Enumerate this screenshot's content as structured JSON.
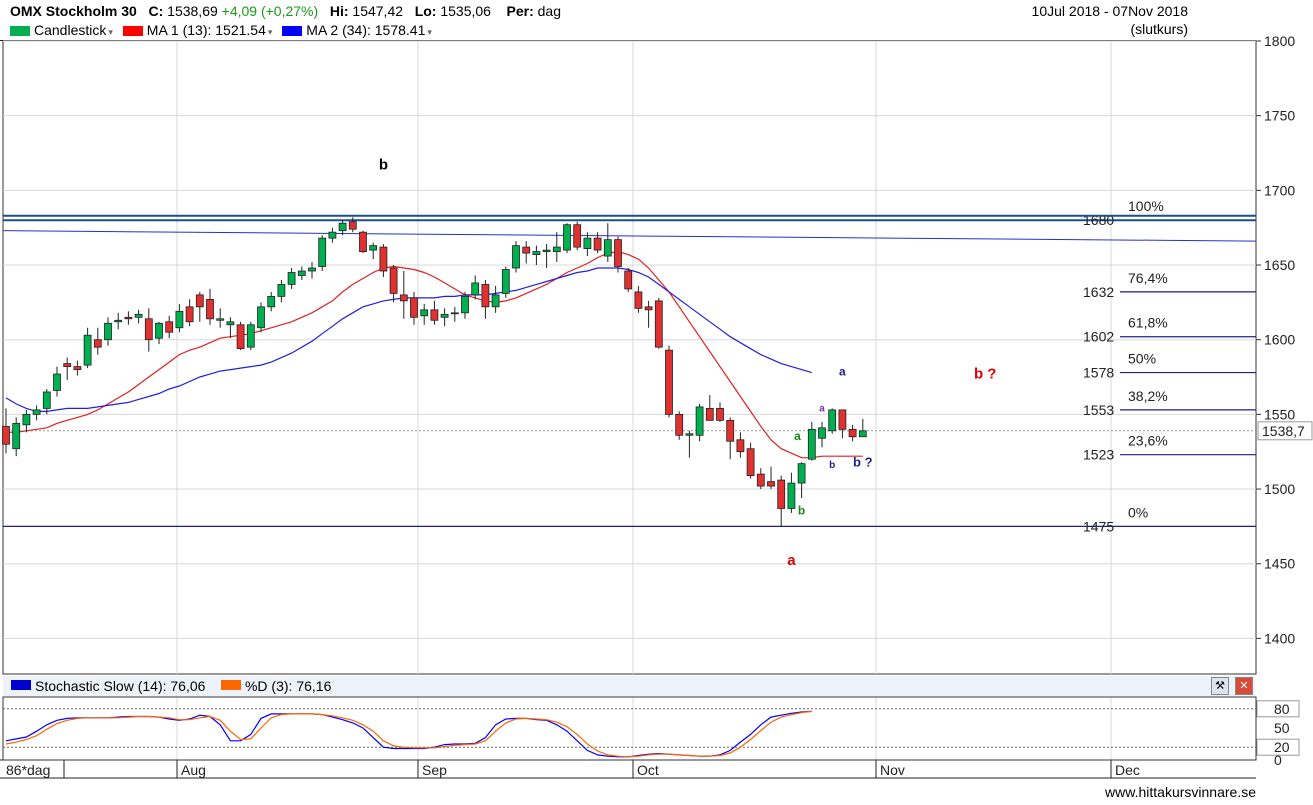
{
  "header": {
    "symbol": "OMX Stockholm 30",
    "close_label": "C:",
    "close_value": "1538,69",
    "change": "+4,09 (+0,27%)",
    "hi_label": "Hi:",
    "hi_value": "1547,42",
    "lo_label": "Lo:",
    "lo_value": "1535,06",
    "per_label": "Per:",
    "per_value": "dag",
    "date_range": "10Jul 2018 - 07Nov 2018",
    "price_type": "(slutkurs)",
    "legend": [
      {
        "label": "Candlestick",
        "color": "#00b050"
      },
      {
        "label": "MA 1 (13): 1521.54",
        "color": "#ff0000"
      },
      {
        "label": "MA 2 (34): 1578.41",
        "color": "#0000ff"
      }
    ]
  },
  "stochastic_header": {
    "k_label": "Stochastic Slow (14): 76,06",
    "d_label": "%D (3): 76,16",
    "k_color": "#0000ff",
    "d_color": "#ff6600"
  },
  "x_axis": {
    "start_label": "86*dag",
    "months": [
      "Aug",
      "Sep",
      "Oct",
      "Nov",
      "Dec"
    ]
  },
  "credit": "www.hittakursvinnare.se",
  "chart_data": [
    {
      "type": "candlestick",
      "ylim": [
        1350,
        1810
      ],
      "y_ticks": [
        1400,
        1450,
        1500,
        1550,
        1600,
        1650,
        1700,
        1750,
        1800
      ],
      "last_price_label": "1538,7",
      "candles": [
        {
          "o": 1542,
          "h": 1554,
          "l": 1524,
          "c": 1530
        },
        {
          "o": 1527,
          "h": 1548,
          "l": 1522,
          "c": 1544
        },
        {
          "o": 1543,
          "h": 1553,
          "l": 1538,
          "c": 1550
        },
        {
          "o": 1550,
          "h": 1556,
          "l": 1546,
          "c": 1553
        },
        {
          "o": 1554,
          "h": 1567,
          "l": 1550,
          "c": 1565
        },
        {
          "o": 1566,
          "h": 1582,
          "l": 1562,
          "c": 1577
        },
        {
          "o": 1584,
          "h": 1588,
          "l": 1573,
          "c": 1582
        },
        {
          "o": 1582,
          "h": 1586,
          "l": 1576,
          "c": 1580
        },
        {
          "o": 1583,
          "h": 1608,
          "l": 1581,
          "c": 1603
        },
        {
          "o": 1600,
          "h": 1608,
          "l": 1590,
          "c": 1595
        },
        {
          "o": 1600,
          "h": 1615,
          "l": 1596,
          "c": 1611
        },
        {
          "o": 1612,
          "h": 1618,
          "l": 1607,
          "c": 1613
        },
        {
          "o": 1615,
          "h": 1619,
          "l": 1610,
          "c": 1614
        },
        {
          "o": 1615,
          "h": 1620,
          "l": 1611,
          "c": 1617
        },
        {
          "o": 1614,
          "h": 1621,
          "l": 1592,
          "c": 1600
        },
        {
          "o": 1601,
          "h": 1612,
          "l": 1597,
          "c": 1611
        },
        {
          "o": 1612,
          "h": 1616,
          "l": 1601,
          "c": 1605
        },
        {
          "o": 1608,
          "h": 1624,
          "l": 1605,
          "c": 1619
        },
        {
          "o": 1622,
          "h": 1627,
          "l": 1609,
          "c": 1612
        },
        {
          "o": 1630,
          "h": 1632,
          "l": 1612,
          "c": 1622
        },
        {
          "o": 1627,
          "h": 1634,
          "l": 1610,
          "c": 1614
        },
        {
          "o": 1613,
          "h": 1621,
          "l": 1608,
          "c": 1614
        },
        {
          "o": 1610,
          "h": 1615,
          "l": 1601,
          "c": 1612
        },
        {
          "o": 1610,
          "h": 1612,
          "l": 1593,
          "c": 1594
        },
        {
          "o": 1595,
          "h": 1612,
          "l": 1593,
          "c": 1610
        },
        {
          "o": 1608,
          "h": 1625,
          "l": 1605,
          "c": 1622
        },
        {
          "o": 1622,
          "h": 1632,
          "l": 1619,
          "c": 1629
        },
        {
          "o": 1629,
          "h": 1640,
          "l": 1625,
          "c": 1637
        },
        {
          "o": 1637,
          "h": 1648,
          "l": 1634,
          "c": 1645
        },
        {
          "o": 1643,
          "h": 1649,
          "l": 1640,
          "c": 1646
        },
        {
          "o": 1646,
          "h": 1652,
          "l": 1641,
          "c": 1648
        },
        {
          "o": 1649,
          "h": 1670,
          "l": 1646,
          "c": 1668
        },
        {
          "o": 1668,
          "h": 1675,
          "l": 1665,
          "c": 1672
        },
        {
          "o": 1673,
          "h": 1680,
          "l": 1670,
          "c": 1678
        },
        {
          "o": 1679,
          "h": 1682,
          "l": 1672,
          "c": 1674
        },
        {
          "o": 1672,
          "h": 1673,
          "l": 1658,
          "c": 1659
        },
        {
          "o": 1660,
          "h": 1665,
          "l": 1654,
          "c": 1663
        },
        {
          "o": 1662,
          "h": 1664,
          "l": 1642,
          "c": 1646
        },
        {
          "o": 1648,
          "h": 1650,
          "l": 1625,
          "c": 1631
        },
        {
          "o": 1630,
          "h": 1646,
          "l": 1614,
          "c": 1626
        },
        {
          "o": 1628,
          "h": 1632,
          "l": 1610,
          "c": 1615
        },
        {
          "o": 1616,
          "h": 1624,
          "l": 1610,
          "c": 1620
        },
        {
          "o": 1620,
          "h": 1626,
          "l": 1610,
          "c": 1613
        },
        {
          "o": 1615,
          "h": 1621,
          "l": 1609,
          "c": 1617
        },
        {
          "o": 1618,
          "h": 1622,
          "l": 1612,
          "c": 1618
        },
        {
          "o": 1618,
          "h": 1632,
          "l": 1614,
          "c": 1629
        },
        {
          "o": 1630,
          "h": 1643,
          "l": 1627,
          "c": 1638
        },
        {
          "o": 1637,
          "h": 1640,
          "l": 1614,
          "c": 1622
        },
        {
          "o": 1622,
          "h": 1636,
          "l": 1618,
          "c": 1630
        },
        {
          "o": 1631,
          "h": 1649,
          "l": 1628,
          "c": 1647
        },
        {
          "o": 1648,
          "h": 1666,
          "l": 1645,
          "c": 1663
        },
        {
          "o": 1662,
          "h": 1666,
          "l": 1651,
          "c": 1658
        },
        {
          "o": 1657,
          "h": 1663,
          "l": 1650,
          "c": 1659
        },
        {
          "o": 1659,
          "h": 1664,
          "l": 1648,
          "c": 1660
        },
        {
          "o": 1659,
          "h": 1672,
          "l": 1652,
          "c": 1662
        },
        {
          "o": 1660,
          "h": 1678,
          "l": 1658,
          "c": 1677
        },
        {
          "o": 1677,
          "h": 1679,
          "l": 1660,
          "c": 1662
        },
        {
          "o": 1661,
          "h": 1672,
          "l": 1656,
          "c": 1668
        },
        {
          "o": 1668,
          "h": 1672,
          "l": 1658,
          "c": 1660
        },
        {
          "o": 1656,
          "h": 1678,
          "l": 1652,
          "c": 1667
        },
        {
          "o": 1667,
          "h": 1669,
          "l": 1645,
          "c": 1649
        },
        {
          "o": 1646,
          "h": 1648,
          "l": 1632,
          "c": 1634
        },
        {
          "o": 1632,
          "h": 1636,
          "l": 1618,
          "c": 1621
        },
        {
          "o": 1622,
          "h": 1626,
          "l": 1608,
          "c": 1620
        },
        {
          "o": 1626,
          "h": 1628,
          "l": 1594,
          "c": 1595
        },
        {
          "o": 1593,
          "h": 1596,
          "l": 1548,
          "c": 1550
        },
        {
          "o": 1550,
          "h": 1552,
          "l": 1533,
          "c": 1536
        },
        {
          "o": 1536,
          "h": 1539,
          "l": 1521,
          "c": 1537
        },
        {
          "o": 1536,
          "h": 1557,
          "l": 1532,
          "c": 1555
        },
        {
          "o": 1554,
          "h": 1563,
          "l": 1546,
          "c": 1546
        },
        {
          "o": 1554,
          "h": 1558,
          "l": 1545,
          "c": 1546
        },
        {
          "o": 1546,
          "h": 1548,
          "l": 1520,
          "c": 1532
        },
        {
          "o": 1533,
          "h": 1538,
          "l": 1521,
          "c": 1525
        },
        {
          "o": 1527,
          "h": 1531,
          "l": 1507,
          "c": 1509
        },
        {
          "o": 1510,
          "h": 1514,
          "l": 1500,
          "c": 1502
        },
        {
          "o": 1505,
          "h": 1515,
          "l": 1500,
          "c": 1502
        },
        {
          "o": 1506,
          "h": 1509,
          "l": 1475,
          "c": 1487
        },
        {
          "o": 1487,
          "h": 1511,
          "l": 1484,
          "c": 1504
        },
        {
          "o": 1504,
          "h": 1518,
          "l": 1494,
          "c": 1517
        },
        {
          "o": 1520,
          "h": 1545,
          "l": 1519,
          "c": 1540
        },
        {
          "o": 1534,
          "h": 1545,
          "l": 1528,
          "c": 1541
        },
        {
          "o": 1539,
          "h": 1554,
          "l": 1537,
          "c": 1553
        },
        {
          "o": 1553,
          "h": 1553,
          "l": 1534,
          "c": 1540
        },
        {
          "o": 1540,
          "h": 1543,
          "l": 1532,
          "c": 1535
        },
        {
          "o": 1535,
          "h": 1547,
          "l": 1535,
          "c": 1539
        }
      ],
      "ma1_13": [
        1538,
        1538,
        1539,
        1540,
        1541,
        1544,
        1546,
        1548,
        1550,
        1553,
        1557,
        1561,
        1565,
        1570,
        1575,
        1580,
        1585,
        1590,
        1593,
        1595,
        1598,
        1601,
        1602,
        1603,
        1604,
        1606,
        1608,
        1610,
        1612,
        1615,
        1618,
        1622,
        1626,
        1632,
        1637,
        1641,
        1645,
        1648,
        1649,
        1648,
        1647,
        1645,
        1642,
        1638,
        1634,
        1630,
        1628,
        1626,
        1625,
        1626,
        1628,
        1631,
        1634,
        1637,
        1641,
        1645,
        1648,
        1651,
        1655,
        1658,
        1659,
        1657,
        1654,
        1648,
        1640,
        1632,
        1622,
        1612,
        1602,
        1592,
        1582,
        1572,
        1562,
        1552,
        1542,
        1533,
        1527,
        1524,
        1521,
        1521,
        1522,
        1522,
        1522,
        1522,
        1522
      ],
      "ma2_34": [
        1561,
        1557,
        1554,
        1552,
        1552,
        1553,
        1554,
        1554,
        1554,
        1555,
        1556,
        1557,
        1558,
        1560,
        1562,
        1564,
        1567,
        1569,
        1572,
        1575,
        1577,
        1579,
        1580,
        1581,
        1582,
        1583,
        1585,
        1588,
        1591,
        1595,
        1599,
        1604,
        1609,
        1614,
        1618,
        1622,
        1624,
        1626,
        1627,
        1628,
        1628,
        1628,
        1628,
        1629,
        1629,
        1630,
        1630,
        1630,
        1631,
        1632,
        1633,
        1635,
        1637,
        1639,
        1641,
        1643,
        1645,
        1646,
        1648,
        1648,
        1648,
        1647,
        1645,
        1642,
        1637,
        1632,
        1627,
        1622,
        1617,
        1612,
        1607,
        1602,
        1598,
        1594,
        1590,
        1587,
        1584,
        1582,
        1580,
        1578
      ],
      "horizontal_lines": [
        {
          "value": 1680,
          "color": "#1f4e8c",
          "label": "1680",
          "fib": "100%"
        },
        {
          "value": 1683,
          "color": "#1f4e8c",
          "label": "",
          "fib": ""
        },
        {
          "value": 1632,
          "color": "#1f1f8c",
          "label": "1632",
          "fib": "76,4%"
        },
        {
          "value": 1602,
          "color": "#1f1f8c",
          "label": "1602",
          "fib": "61,8%"
        },
        {
          "value": 1578,
          "color": "#1f1f8c",
          "label": "1578",
          "fib": "50%"
        },
        {
          "value": 1553,
          "color": "#1f1f8c",
          "label": "1553",
          "fib": "38,2%"
        },
        {
          "value": 1523,
          "color": "#1f1f8c",
          "label": "1523",
          "fib": "23,6%"
        },
        {
          "value": 1475,
          "color": "#1f1f8c",
          "label": "1475",
          "fib": "0%"
        }
      ],
      "trendline": {
        "from": [
          0,
          1673
        ],
        "to_value": 1666
      },
      "annotations": [
        {
          "text": "b",
          "color": "#000000",
          "bar": 37,
          "value": 1714,
          "size": 15
        },
        {
          "text": "a",
          "color": "#e00000",
          "bar": 77,
          "value": 1449,
          "size": 15
        },
        {
          "text": "b ?",
          "color": "#e00000",
          "bar": 96,
          "value": 1574,
          "size": 15
        },
        {
          "text": "b",
          "color": "#1a8a1a",
          "bar": 78,
          "value": 1483,
          "size": 12
        },
        {
          "text": "a",
          "color": "#1a8a1a",
          "bar": 77.6,
          "value": 1533,
          "size": 12
        },
        {
          "text": "a",
          "color": "#7030a0",
          "bar": 80,
          "value": 1552,
          "size": 10
        },
        {
          "text": "b",
          "color": "#1f1f8c",
          "bar": 81,
          "value": 1514,
          "size": 10
        },
        {
          "text": "a",
          "color": "#1f1f8c",
          "bar": 82,
          "value": 1576,
          "size": 12
        },
        {
          "text": "b ?",
          "color": "#1f1f8c",
          "bar": 84,
          "value": 1515,
          "size": 13
        }
      ]
    },
    {
      "type": "line",
      "title": "Stochastic Slow",
      "ylim": [
        0,
        100
      ],
      "y_ticks": [
        "80",
        "50",
        "20",
        "0"
      ],
      "series": [
        {
          "name": "Stochastic Slow (14)",
          "color": "#0000ff",
          "values": [
            30,
            33,
            36,
            45,
            55,
            62,
            65,
            66,
            66,
            66,
            66,
            67,
            68,
            68,
            68,
            67,
            64,
            62,
            64,
            70,
            68,
            55,
            30,
            30,
            40,
            65,
            72,
            72,
            72,
            72,
            72,
            71,
            67,
            63,
            58,
            50,
            35,
            20,
            18,
            18,
            18,
            18,
            20,
            24,
            25,
            25,
            26,
            35,
            55,
            64,
            65,
            65,
            63,
            62,
            55,
            45,
            30,
            15,
            8,
            6,
            5,
            5,
            7,
            9,
            10,
            9,
            8,
            7,
            6,
            6,
            8,
            15,
            28,
            40,
            55,
            67,
            70,
            73,
            75,
            76
          ]
        },
        {
          "name": "%D (3)",
          "color": "#ff6600",
          "values": [
            25,
            28,
            32,
            38,
            48,
            57,
            62,
            65,
            66,
            66,
            66,
            66,
            67,
            68,
            68,
            67,
            66,
            63,
            63,
            66,
            68,
            62,
            45,
            32,
            33,
            50,
            66,
            71,
            72,
            72,
            72,
            71,
            69,
            66,
            62,
            55,
            45,
            30,
            22,
            20,
            19,
            19,
            19,
            21,
            23,
            24,
            25,
            30,
            45,
            58,
            64,
            65,
            64,
            63,
            59,
            52,
            40,
            25,
            14,
            8,
            6,
            5,
            6,
            8,
            9,
            9,
            8,
            7,
            6,
            6,
            7,
            11,
            20,
            32,
            46,
            59,
            67,
            71,
            74,
            76
          ]
        }
      ]
    }
  ]
}
